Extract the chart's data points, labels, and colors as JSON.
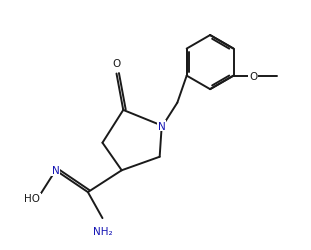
{
  "background": "#ffffff",
  "line_color": "#1a1a1a",
  "n_color": "#1414b4",
  "figsize": [
    3.11,
    2.51
  ],
  "dpi": 100,
  "lw": 1.4,
  "fs": 7.5,
  "xlim": [
    -0.2,
    4.8
  ],
  "ylim": [
    -0.8,
    4.0
  ]
}
